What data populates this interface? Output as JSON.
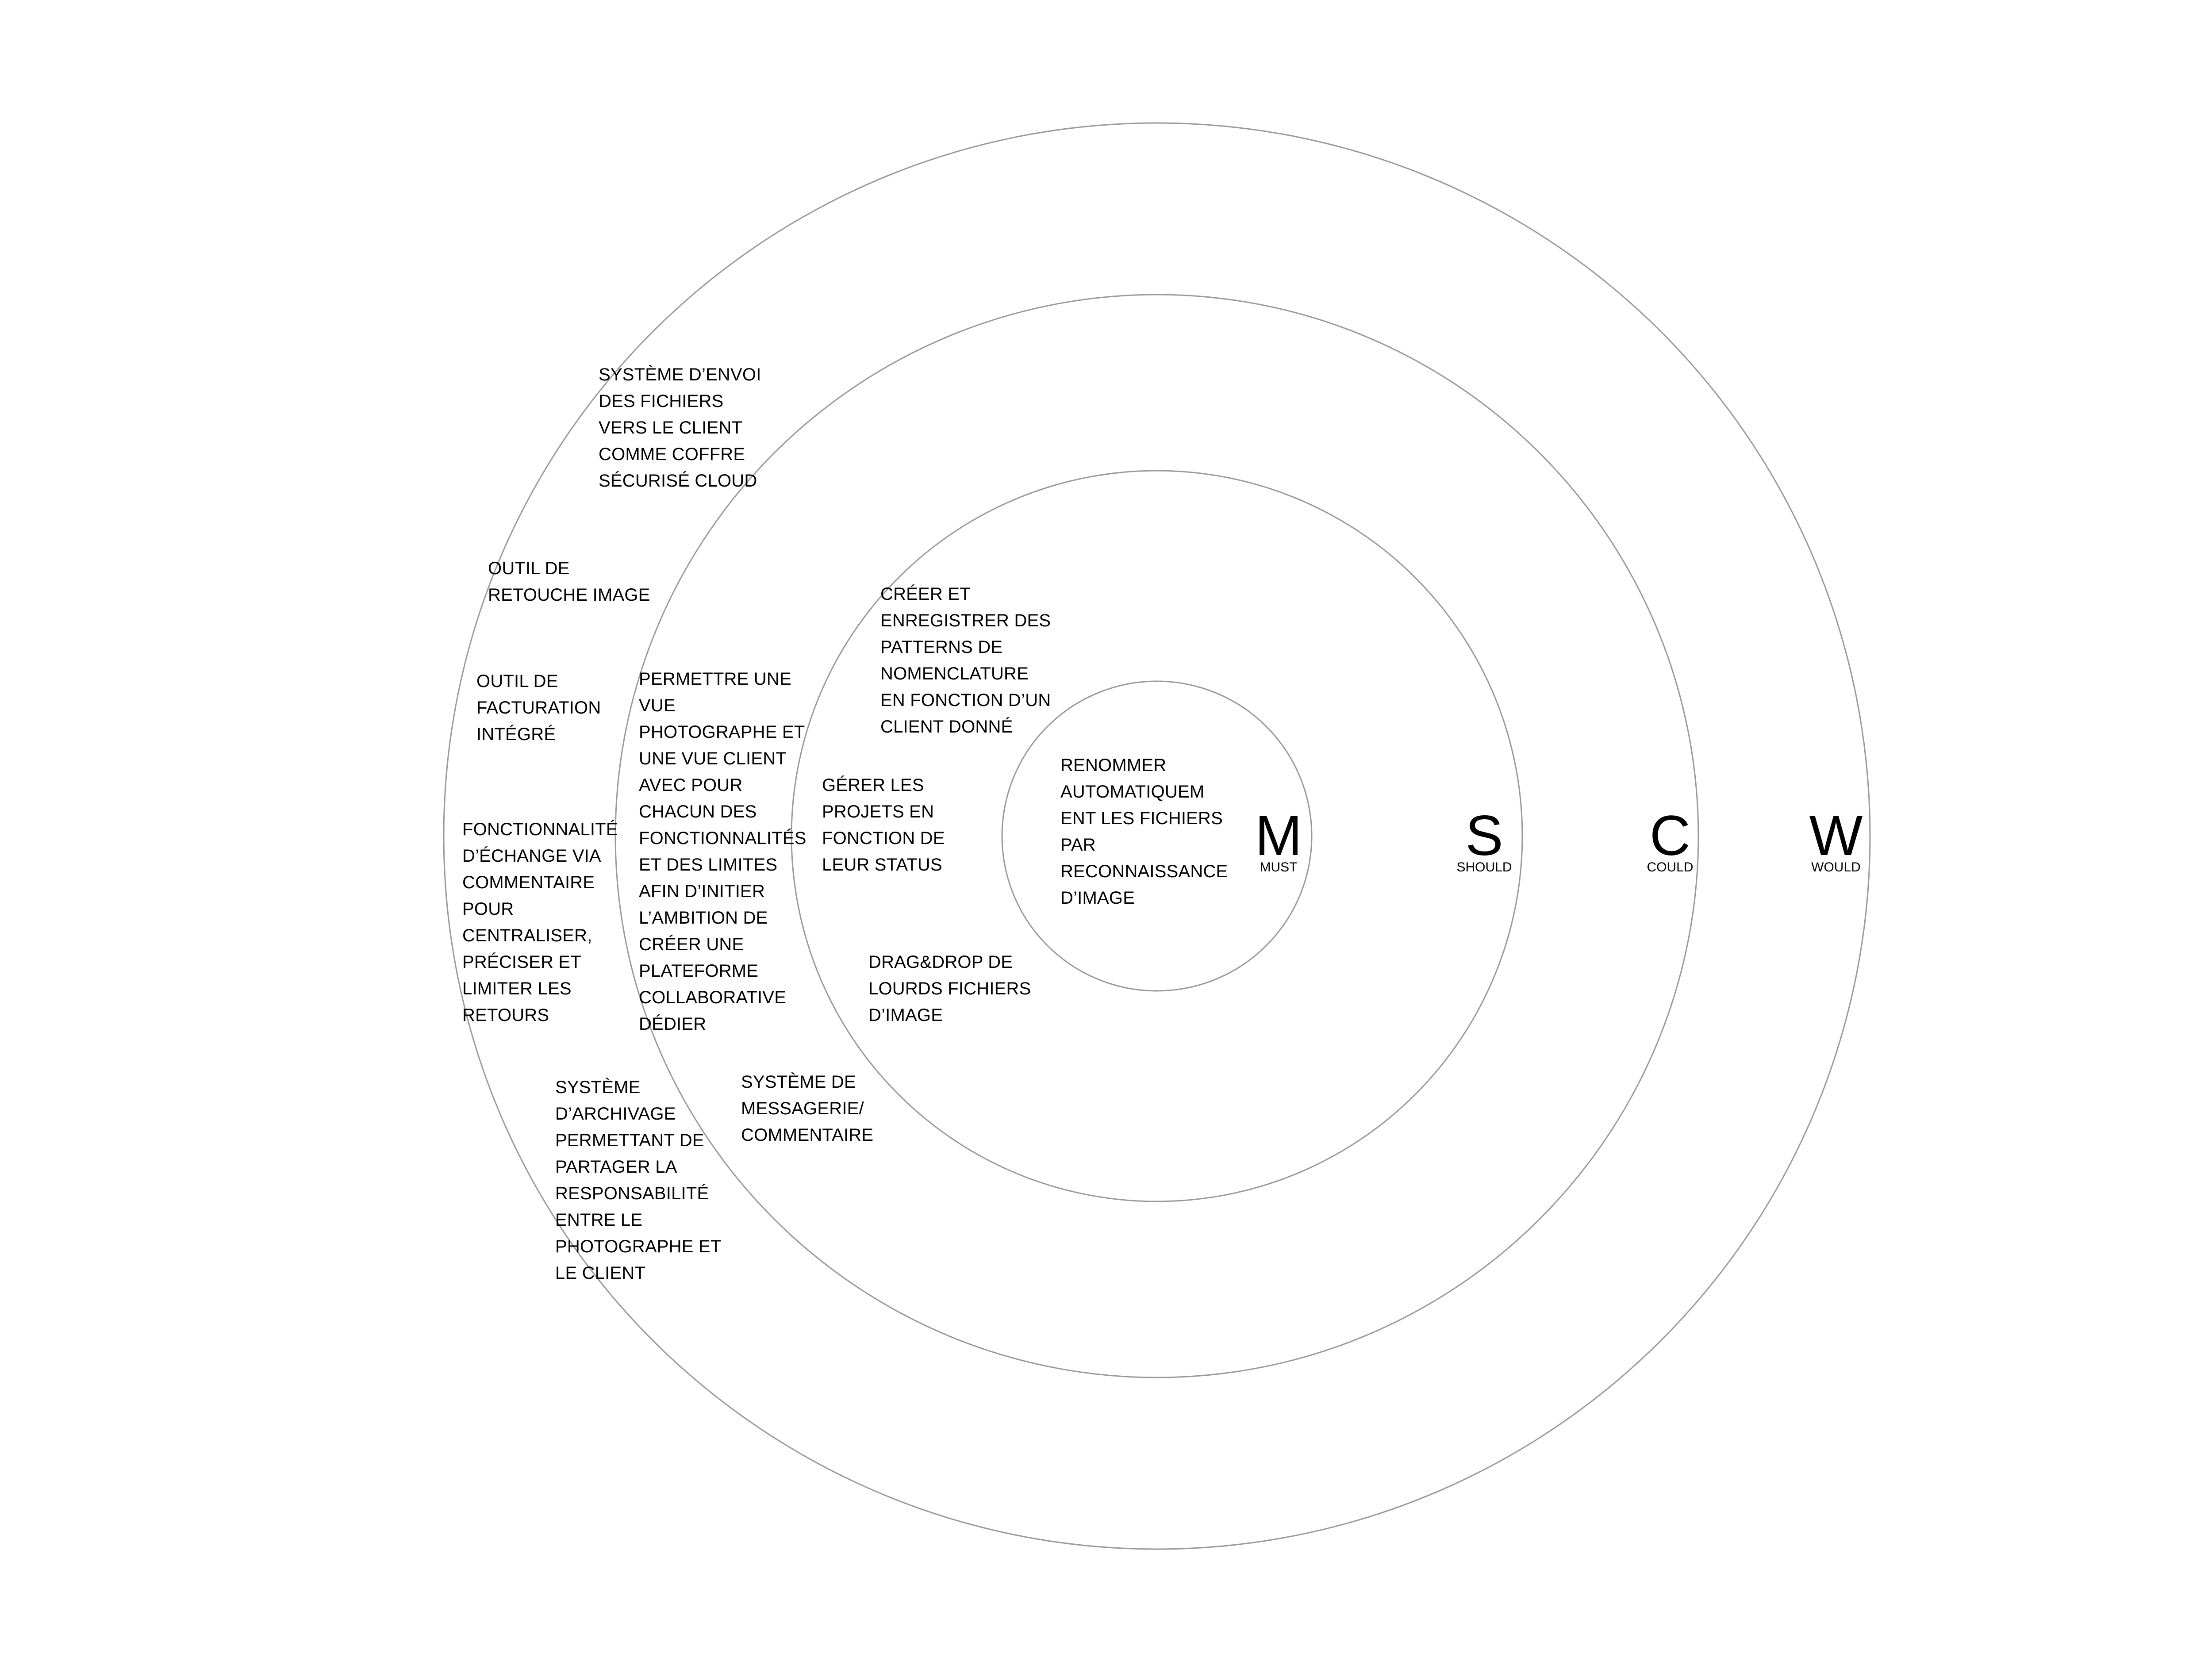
{
  "levels": {
    "must": {
      "letter": "M",
      "word": "MUST"
    },
    "should": {
      "letter": "S",
      "word": "SHOULD"
    },
    "could": {
      "letter": "C",
      "word": "COULD"
    },
    "would": {
      "letter": "W",
      "word": "WOULD"
    }
  },
  "items": {
    "must": [
      "RENOMMER\nAUTOMATIQUEM\nENT LES FICHIERS\nPAR\nRECONNAISSANCE\nD’IMAGE"
    ],
    "should": [
      "CRÉER ET\nENREGISTRER DES\nPATTERNS DE\nNOMENCLATURE\nEN FONCTION D’UN\nCLIENT DONNÉ",
      "GÉRER LES\nPROJETS EN\nFONCTION DE\nLEUR STATUS",
      "DRAG&DROP DE\nLOURDS FICHIERS\nD’IMAGE"
    ],
    "could": [
      "PERMETTRE UNE\nVUE\nPHOTOGRAPHE ET\nUNE VUE CLIENT\nAVEC POUR\nCHACUN DES\nFONCTIONNALITÉS\nET DES LIMITES\nAFIN D’INITIER\nL’AMBITION DE\nCRÉER UNE\nPLATEFORME\nCOLLABORATIVE\nDÉDIER",
      "SYSTÈME DE\nMESSAGERIE/\nCOMMENTAIRE"
    ],
    "would": [
      "SYSTÈME D’ENVOI\nDES FICHIERS\nVERS LE CLIENT\nCOMME COFFRE\nSÉCURISÉ CLOUD",
      "OUTIL DE\nRETOUCHE IMAGE",
      "OUTIL DE\nFACTURATION\nINTÉGRÉ",
      "FONCTIONNALITÉ\nD’ÉCHANGE VIA\nCOMMENTAIRE\nPOUR\nCENTRALISER,\nPRÉCISER ET\nLIMITER LES\nRETOURS",
      "SYSTÈME\nD’ARCHIVAGE\nPERMETTANT DE\nPARTAGER LA\nRESPONSABILITÉ\nENTRE LE\nPHOTOGRAPHE ET\nLE CLIENT"
    ]
  }
}
